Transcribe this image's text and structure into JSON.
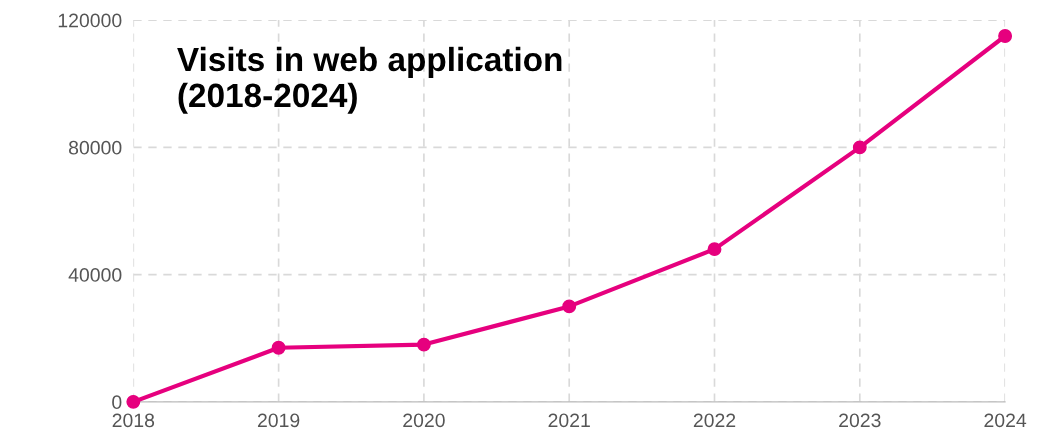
{
  "chart_data": {
    "type": "line",
    "title": "Visits in web application\n(2018-2024)",
    "x": [
      2018,
      2019,
      2020,
      2021,
      2022,
      2023,
      2024
    ],
    "series": [
      {
        "color": "#e6007e",
        "values": [
          0,
          17000,
          18000,
          30000,
          48000,
          80000,
          115000
        ]
      }
    ],
    "xlim": [
      2018,
      2024
    ],
    "xticks": [
      2018,
      2019,
      2020,
      2021,
      2022,
      2023,
      2024
    ],
    "ylim": [
      0,
      120000
    ],
    "yticks": [
      0,
      40000,
      80000,
      120000
    ],
    "grid": true,
    "marker": "circle",
    "line_style": "solid"
  }
}
